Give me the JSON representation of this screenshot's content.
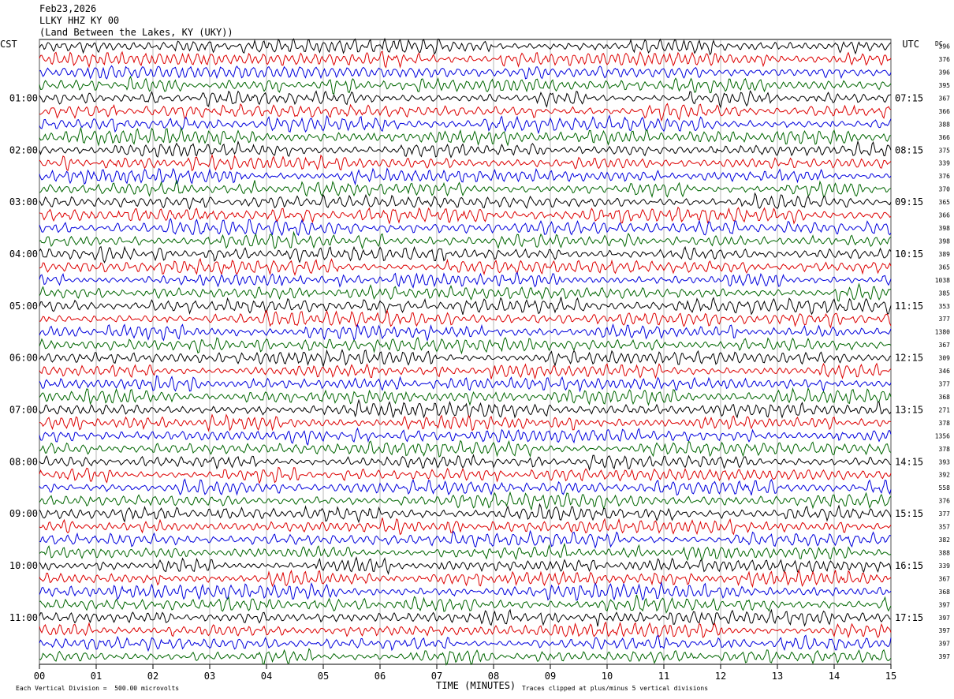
{
  "header": {
    "date": "Feb23,2026",
    "station": "LLKY HHZ KY 00",
    "location": "(Land Between the Lakes, KY (UKY))"
  },
  "chart_data": {
    "type": "line",
    "title": "",
    "xlabel": "TIME (MINUTES)",
    "ylabel": "",
    "left_axis_label": "CST",
    "right_axis_label": "UTC",
    "dc_label": "DC",
    "x_ticks": [
      "00",
      "01",
      "02",
      "03",
      "04",
      "05",
      "06",
      "07",
      "08",
      "09",
      "10",
      "11",
      "12",
      "13",
      "14",
      "15"
    ],
    "xlim": [
      0,
      15
    ],
    "trace_count": 48,
    "trace_colors": [
      "#000000",
      "#dd0000",
      "#0000dd",
      "#006600"
    ],
    "left_time_labels": [
      "01:00",
      "02:00",
      "03:00",
      "04:00",
      "05:00",
      "06:00",
      "07:00",
      "08:00",
      "09:00",
      "10:00",
      "11:00"
    ],
    "right_time_labels": [
      "07:15",
      "08:15",
      "09:15",
      "10:15",
      "11:15",
      "12:15",
      "13:15",
      "14:15",
      "15:15",
      "16:15",
      "17:15"
    ],
    "dc_offsets": [
      "396",
      "376",
      "396",
      "395",
      "367",
      "366",
      "388",
      "366",
      "375",
      "339",
      "376",
      "370",
      "365",
      "366",
      "398",
      "398",
      "389",
      "365",
      "1038",
      "385",
      "353",
      "377",
      "1380",
      "367",
      "309",
      "346",
      "377",
      "368",
      "271",
      "378",
      "1356",
      "378",
      "393",
      "392",
      "558",
      "376",
      "377",
      "357",
      "382",
      "388",
      "339",
      "367",
      "368",
      "397",
      "397",
      "397",
      "397",
      "397"
    ],
    "scale_note": "Each Vertical Division =  500.00 microvolts",
    "clip_note": "Traces clipped at plus/minus 5 vertical divisions"
  }
}
